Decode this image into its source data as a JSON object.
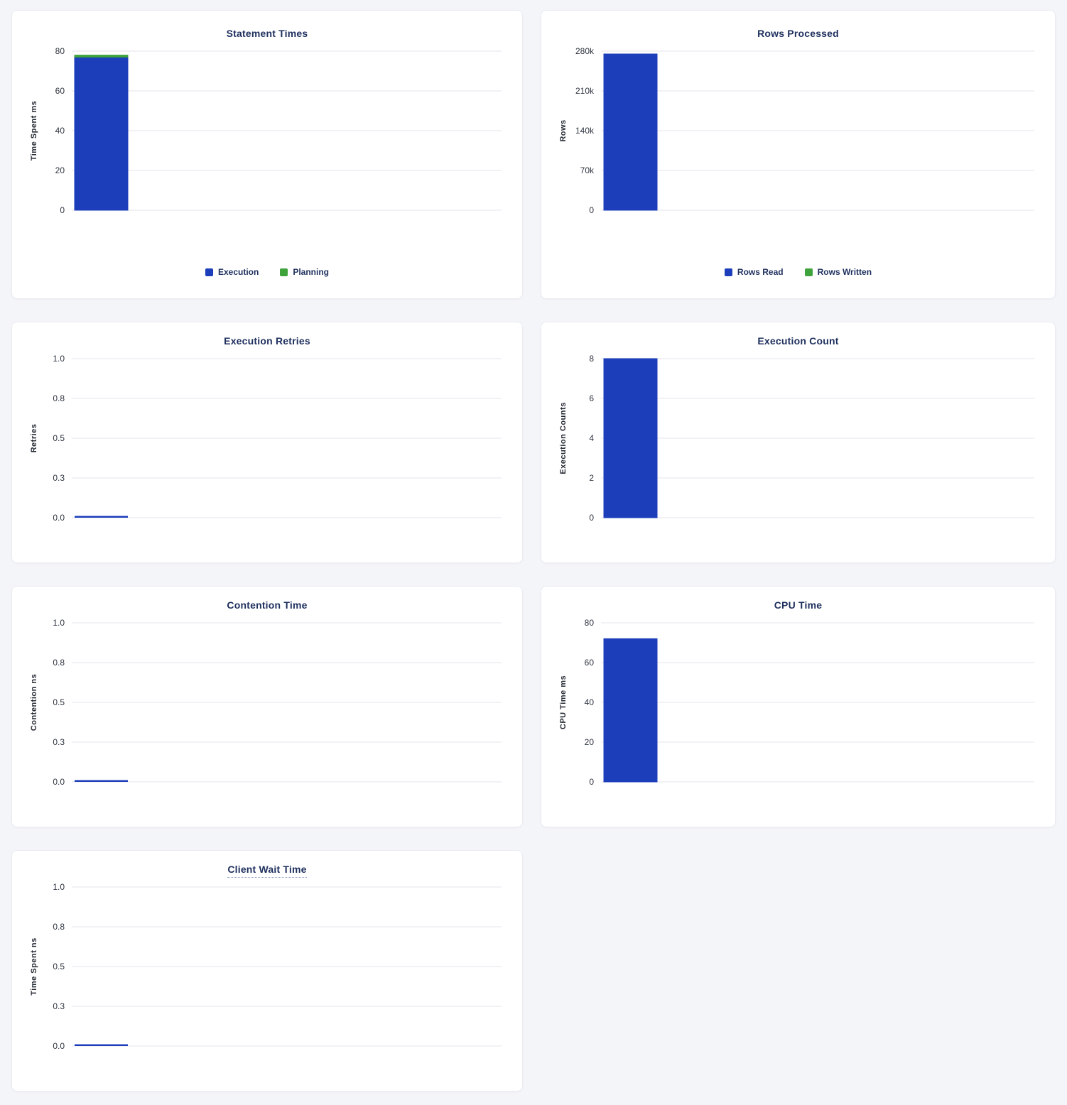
{
  "page": {
    "background_color": "#f4f5f9",
    "panel_background": "#ffffff"
  },
  "colors": {
    "bar_blue": "#1c3eba",
    "bar_green": "#3fa33c",
    "title_text": "#1e2f5d",
    "tick_text": "#2e3440",
    "grid_line": "#e9ebf1"
  },
  "chart_data": [
    {
      "type": "bar",
      "title": "Statement Times",
      "ylabel": "Time Spent ms",
      "ylim": [
        0,
        80
      ],
      "ymax": 80,
      "ytick_labels": [
        "0",
        "20",
        "40",
        "60",
        "80"
      ],
      "stacked": true,
      "grid": true,
      "legend_position": "bottom",
      "series": [
        {
          "name": "Execution",
          "color_key": "bar_blue",
          "value": 77
        },
        {
          "name": "Planning",
          "color_key": "bar_green",
          "value": 1
        }
      ],
      "legend": [
        {
          "label": "Execution",
          "color_key": "bar_blue"
        },
        {
          "label": "Planning",
          "color_key": "bar_green"
        }
      ]
    },
    {
      "type": "bar",
      "title": "Rows Processed",
      "ylabel": "Rows",
      "ylim": [
        0,
        280000
      ],
      "ymax": 280000,
      "ytick_labels": [
        "0",
        "70k",
        "140k",
        "210k",
        "280k"
      ],
      "stacked": true,
      "grid": true,
      "legend_position": "bottom",
      "series": [
        {
          "name": "Rows Read",
          "color_key": "bar_blue",
          "value": 275000
        },
        {
          "name": "Rows Written",
          "color_key": "bar_green",
          "value": 0
        }
      ],
      "legend": [
        {
          "label": "Rows Read",
          "color_key": "bar_blue"
        },
        {
          "label": "Rows Written",
          "color_key": "bar_green"
        }
      ]
    },
    {
      "type": "bar",
      "title": "Execution Retries",
      "ylabel": "Retries",
      "ylim": [
        0,
        1
      ],
      "ymax": 1,
      "ytick_labels": [
        "0.0",
        "0.3",
        "0.5",
        "0.8",
        "1.0"
      ],
      "grid": true,
      "series": [
        {
          "name": "Retries",
          "color_key": "bar_blue",
          "value": 0
        }
      ]
    },
    {
      "type": "bar",
      "title": "Execution Count",
      "ylabel": "Execution Counts",
      "ylim": [
        0,
        8
      ],
      "ymax": 8,
      "ytick_labels": [
        "0",
        "2",
        "4",
        "6",
        "8"
      ],
      "grid": true,
      "series": [
        {
          "name": "Execution Count",
          "color_key": "bar_blue",
          "value": 8
        }
      ]
    },
    {
      "type": "bar",
      "title": "Contention Time",
      "ylabel": "Contention ns",
      "ylim": [
        0,
        1
      ],
      "ymax": 1,
      "ytick_labels": [
        "0.0",
        "0.3",
        "0.5",
        "0.8",
        "1.0"
      ],
      "grid": true,
      "series": [
        {
          "name": "Contention",
          "color_key": "bar_blue",
          "value": 0
        }
      ]
    },
    {
      "type": "bar",
      "title": "CPU Time",
      "ylabel": "CPU Time ms",
      "ylim": [
        0,
        80
      ],
      "ymax": 80,
      "ytick_labels": [
        "0",
        "20",
        "40",
        "60",
        "80"
      ],
      "grid": true,
      "series": [
        {
          "name": "CPU Time",
          "color_key": "bar_blue",
          "value": 72
        }
      ]
    },
    {
      "type": "bar",
      "title": "Client Wait Time",
      "title_underline": true,
      "ylabel": "Time Spent ns",
      "ylim": [
        0,
        1
      ],
      "ymax": 1,
      "ytick_labels": [
        "0.0",
        "0.3",
        "0.5",
        "0.8",
        "1.0"
      ],
      "grid": true,
      "series": [
        {
          "name": "Client Wait",
          "color_key": "bar_blue",
          "value": 0
        }
      ]
    }
  ]
}
